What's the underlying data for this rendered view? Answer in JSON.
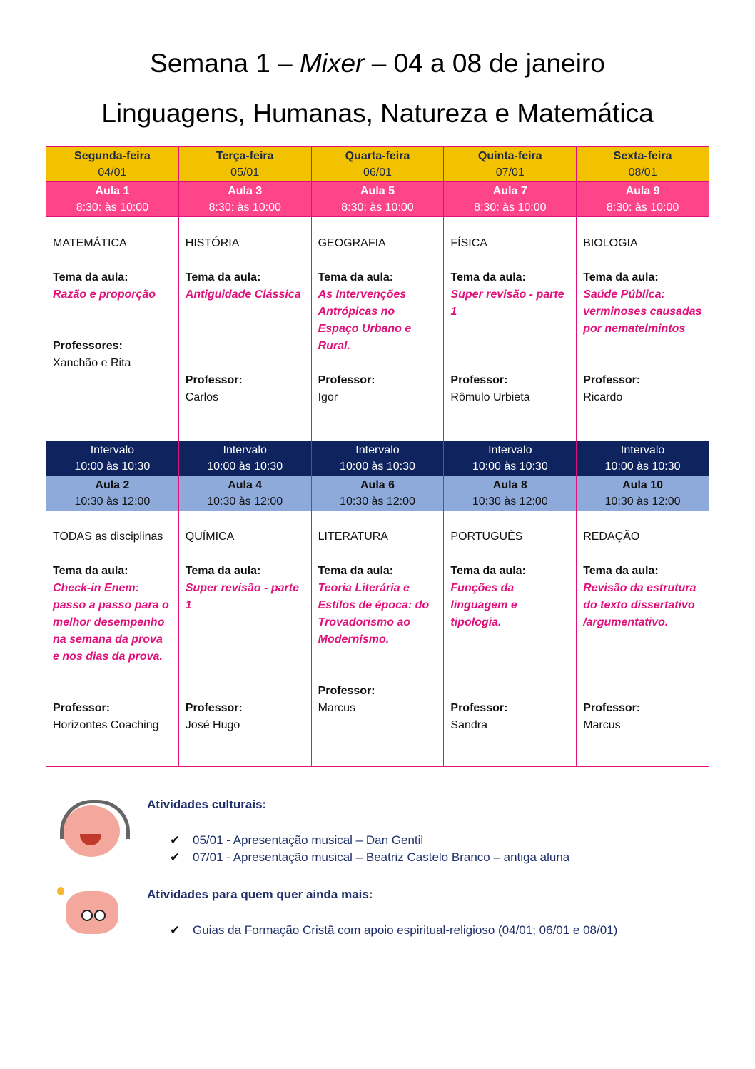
{
  "title": {
    "pre": "Semana 1 – ",
    "italic": "Mixer",
    "post": " – 04 a 08 de janeiro"
  },
  "subtitle": "Linguagens, Humanas, Natureza e Matemática",
  "days": [
    {
      "name": "Segunda-feira",
      "date": "04/01",
      "aula1": "Aula 1",
      "time1": "8:30: às 10:00",
      "interval": "Intervalo",
      "itime": "10:00 às 10:30",
      "aula2": "Aula 2",
      "time2": "10:30 às 12:00"
    },
    {
      "name": "Terça-feira",
      "date": "05/01",
      "aula1": "Aula 3",
      "time1": "8:30: às 10:00",
      "interval": "Intervalo",
      "itime": "10:00 às 10:30",
      "aula2": "Aula 4",
      "time2": "10:30 às 12:00"
    },
    {
      "name": "Quarta-feira",
      "date": "06/01",
      "aula1": "Aula 5",
      "time1": "8:30: às 10:00",
      "interval": "Intervalo",
      "itime": "10:00 às 10:30",
      "aula2": "Aula 6",
      "time2": "10:30 às 12:00"
    },
    {
      "name": "Quinta-feira",
      "date": "07/01",
      "aula1": "Aula 7",
      "time1": "8:30: às 10:00",
      "interval": "Intervalo",
      "itime": "10:00 às 10:30",
      "aula2": "Aula 8",
      "time2": "10:30 às 12:00"
    },
    {
      "name": "Sexta-feira",
      "date": "08/01",
      "aula1": "Aula 9",
      "time1": "8:30: às 10:00",
      "interval": "Intervalo",
      "itime": "10:00 às 10:30",
      "aula2": "Aula 10",
      "time2": "10:30 às 12:00"
    }
  ],
  "row1": [
    {
      "subject": "MATEMÁTICA",
      "tema_label": "Tema da aula:",
      "tema": [
        "Razão e proporção"
      ],
      "prof_label": "Professores:",
      "prof": "Xanchão e Rita"
    },
    {
      "subject": "HISTÓRIA",
      "tema_label": "Tema da aula:",
      "tema": [
        "Antiguidade Clássica"
      ],
      "prof_label": "Professor:",
      "prof": "Carlos"
    },
    {
      "subject": "GEOGRAFIA",
      "tema_label": "Tema da aula:",
      "tema": [
        "As Intervenções",
        "Antrópicas no",
        "Espaço Urbano e",
        "Rural."
      ],
      "prof_label": "Professor:",
      "prof": "Igor"
    },
    {
      "subject": "FÍSICA",
      "tema_label": "Tema da aula:",
      "tema": [
        "Super revisão - parte",
        "1"
      ],
      "prof_label": "Professor:",
      "prof": "Rômulo Urbieta"
    },
    {
      "subject": "BIOLOGIA",
      "tema_label": "Tema da aula:",
      "tema": [
        "Saúde Pública:",
        "verminoses causadas",
        "por nematelmintos"
      ],
      "prof_label": "Professor:",
      "prof": "Ricardo"
    }
  ],
  "row2": [
    {
      "subject": "TODAS as disciplinas",
      "tema_label": "Tema da aula:",
      "tema": [
        "Check-in Enem:",
        "passo a passo para o",
        "melhor desempenho",
        "na semana da prova",
        "e nos dias da prova."
      ],
      "prof_label": "Professor:",
      "prof": "Horizontes Coaching"
    },
    {
      "subject": "QUÍMICA",
      "tema_label": "Tema da aula:",
      "tema": [
        "Super revisão - parte",
        "1"
      ],
      "prof_label": "Professor:",
      "prof": "José Hugo"
    },
    {
      "subject": "LITERATURA",
      "tema_label": "Tema da aula:",
      "tema": [
        "Teoria Literária e",
        "Estilos de época: do",
        "Trovadorismo ao",
        "Modernismo."
      ],
      "prof_label": "Professor:",
      "prof": "Marcus"
    },
    {
      "subject": "PORTUGUÊS",
      "tema_label": "Tema da aula:",
      "tema": [
        "Funções da",
        "linguagem e",
        "tipologia."
      ],
      "prof_label": "Professor:",
      "prof": "Sandra"
    },
    {
      "subject": "REDAÇÃO",
      "tema_label": "Tema da aula:",
      "tema": [
        "Revisão da estrutura",
        "do texto dissertativo",
        "/argumentativo."
      ],
      "prof_label": "Professor:",
      "prof": "Marcus"
    }
  ],
  "cultural": {
    "heading": "Atividades culturais:",
    "items": [
      "05/01 - Apresentação musical – Dan Gentil",
      "07/01 - Apresentação musical – Beatriz Castelo Branco – antiga aluna"
    ]
  },
  "more": {
    "heading": "Atividades para quem quer ainda mais:",
    "items": [
      "Guias da Formação Cristã com apoio espiritual-religioso (04/01; 06/01 e 08/01)"
    ]
  },
  "colors": {
    "yellow": "#f2c200",
    "pink": "#ff4589",
    "navy": "#0f235f",
    "lightblue": "#8eaadb",
    "theme": "#e0117a"
  },
  "icons": {
    "check": "checkmark-icon",
    "brain1": "brain-headphones-mascot",
    "brain2": "brain-idea-mascot"
  }
}
